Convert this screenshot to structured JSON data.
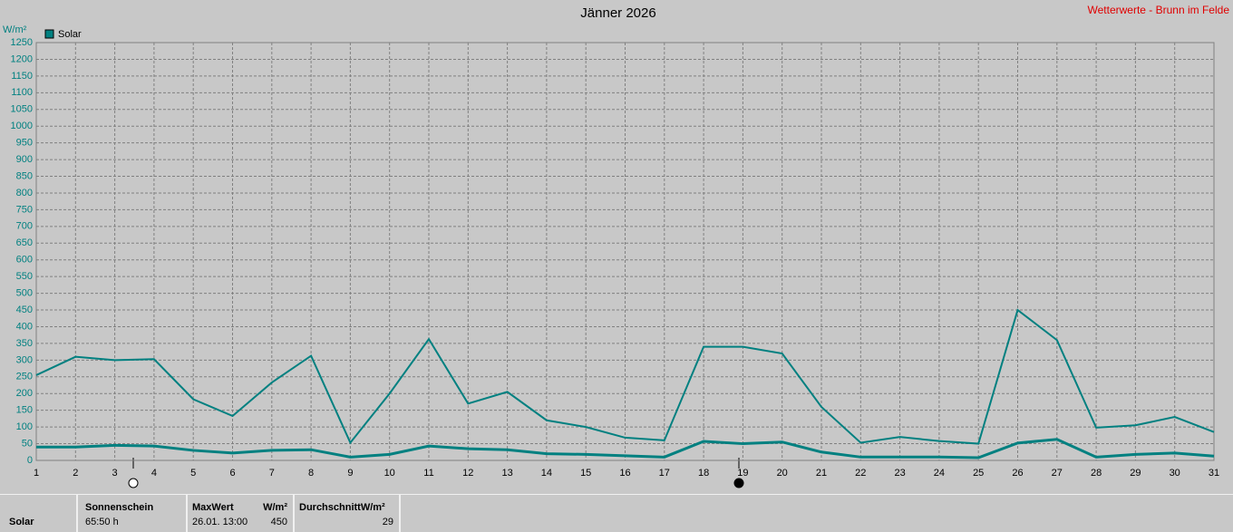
{
  "chart_data": {
    "type": "line",
    "title": "Jänner 2026",
    "subtitle": "Wetterwerte - Brunn im Felde",
    "ylabel": "W/m²",
    "x": [
      1,
      2,
      3,
      4,
      5,
      6,
      7,
      8,
      9,
      10,
      11,
      12,
      13,
      14,
      15,
      16,
      17,
      18,
      19,
      20,
      21,
      22,
      23,
      24,
      25,
      26,
      27,
      28,
      29,
      30,
      31
    ],
    "series": [
      {
        "name": "Solar",
        "color": "#008080",
        "values": [
          255,
          310,
          300,
          303,
          183,
          133,
          233,
          313,
          53,
          200,
          363,
          170,
          205,
          120,
          100,
          68,
          60,
          340,
          340,
          320,
          160,
          53,
          70,
          58,
          50,
          450,
          360,
          98,
          105,
          130,
          85
        ]
      },
      {
        "color": "#008080",
        "values": [
          40,
          40,
          45,
          43,
          30,
          22,
          30,
          32,
          10,
          18,
          43,
          35,
          32,
          20,
          18,
          14,
          10,
          57,
          50,
          55,
          25,
          10,
          10,
          10,
          8,
          52,
          63,
          10,
          18,
          22,
          13
        ]
      }
    ],
    "xlim": [
      1,
      31
    ],
    "xticks": [
      1,
      2,
      3,
      4,
      5,
      6,
      7,
      8,
      9,
      10,
      11,
      12,
      13,
      14,
      15,
      16,
      17,
      18,
      19,
      20,
      21,
      22,
      23,
      24,
      25,
      26,
      27,
      28,
      29,
      30,
      31
    ],
    "ylim": [
      0,
      1250
    ],
    "yticks": [
      0,
      50,
      100,
      150,
      200,
      250,
      300,
      350,
      400,
      450,
      500,
      550,
      600,
      650,
      700,
      750,
      800,
      850,
      900,
      950,
      1000,
      1050,
      1100,
      1150,
      1200,
      1250
    ],
    "grid": true
  },
  "summary": {
    "row_label": "Solar",
    "sunshine_header": "Sonnenschein",
    "sunshine_value": "65:50 h",
    "max_header": "MaxWert",
    "max_unit": "W/m²",
    "max_time": "26.01.  13:00",
    "max_value": "450",
    "avg_header": "DurchschnittW/m²",
    "avg_value": "29"
  }
}
